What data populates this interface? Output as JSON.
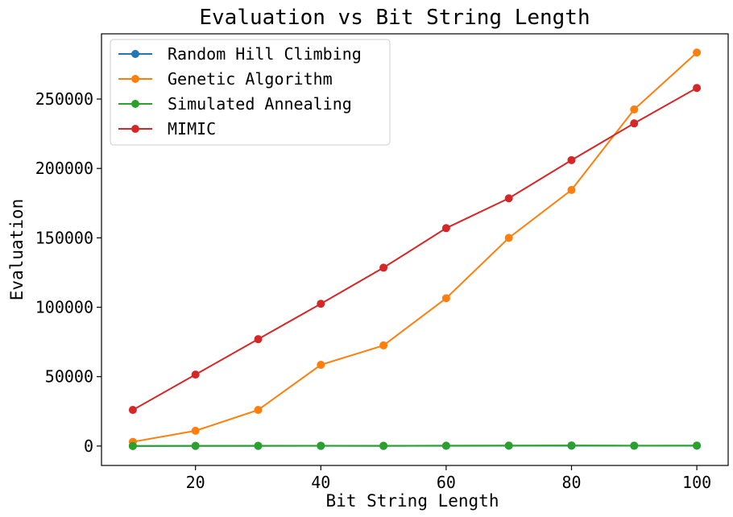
{
  "chart_data": {
    "type": "line",
    "title": "Evaluation vs Bit String Length",
    "xlabel": "Bit String Length",
    "ylabel": "Evaluation",
    "x": [
      10,
      20,
      30,
      40,
      50,
      60,
      70,
      80,
      90,
      100
    ],
    "xlim": [
      5,
      105
    ],
    "ylim": [
      -14000,
      297000
    ],
    "x_ticks": [
      20,
      40,
      60,
      80,
      100
    ],
    "y_ticks": [
      0,
      50000,
      100000,
      150000,
      200000,
      250000
    ],
    "grid": false,
    "legend_position": "upper-left",
    "series": [
      {
        "name": "Random Hill Climbing",
        "color": "#1f77b4",
        "values": [
          20,
          60,
          80,
          120,
          100,
          150,
          200,
          220,
          180,
          230
        ]
      },
      {
        "name": "Genetic Algorithm",
        "color": "#ff7f0e",
        "values": [
          3000,
          11000,
          26000,
          58500,
          72500,
          106500,
          150000,
          184500,
          242500,
          283500
        ]
      },
      {
        "name": "Simulated Annealing",
        "color": "#2ca02c",
        "values": [
          40,
          150,
          200,
          250,
          180,
          300,
          350,
          450,
          300,
          380
        ]
      },
      {
        "name": "MIMIC",
        "color": "#d62728",
        "values": [
          26000,
          51500,
          77000,
          102500,
          128500,
          157000,
          178500,
          206000,
          232500,
          258000
        ]
      }
    ]
  }
}
